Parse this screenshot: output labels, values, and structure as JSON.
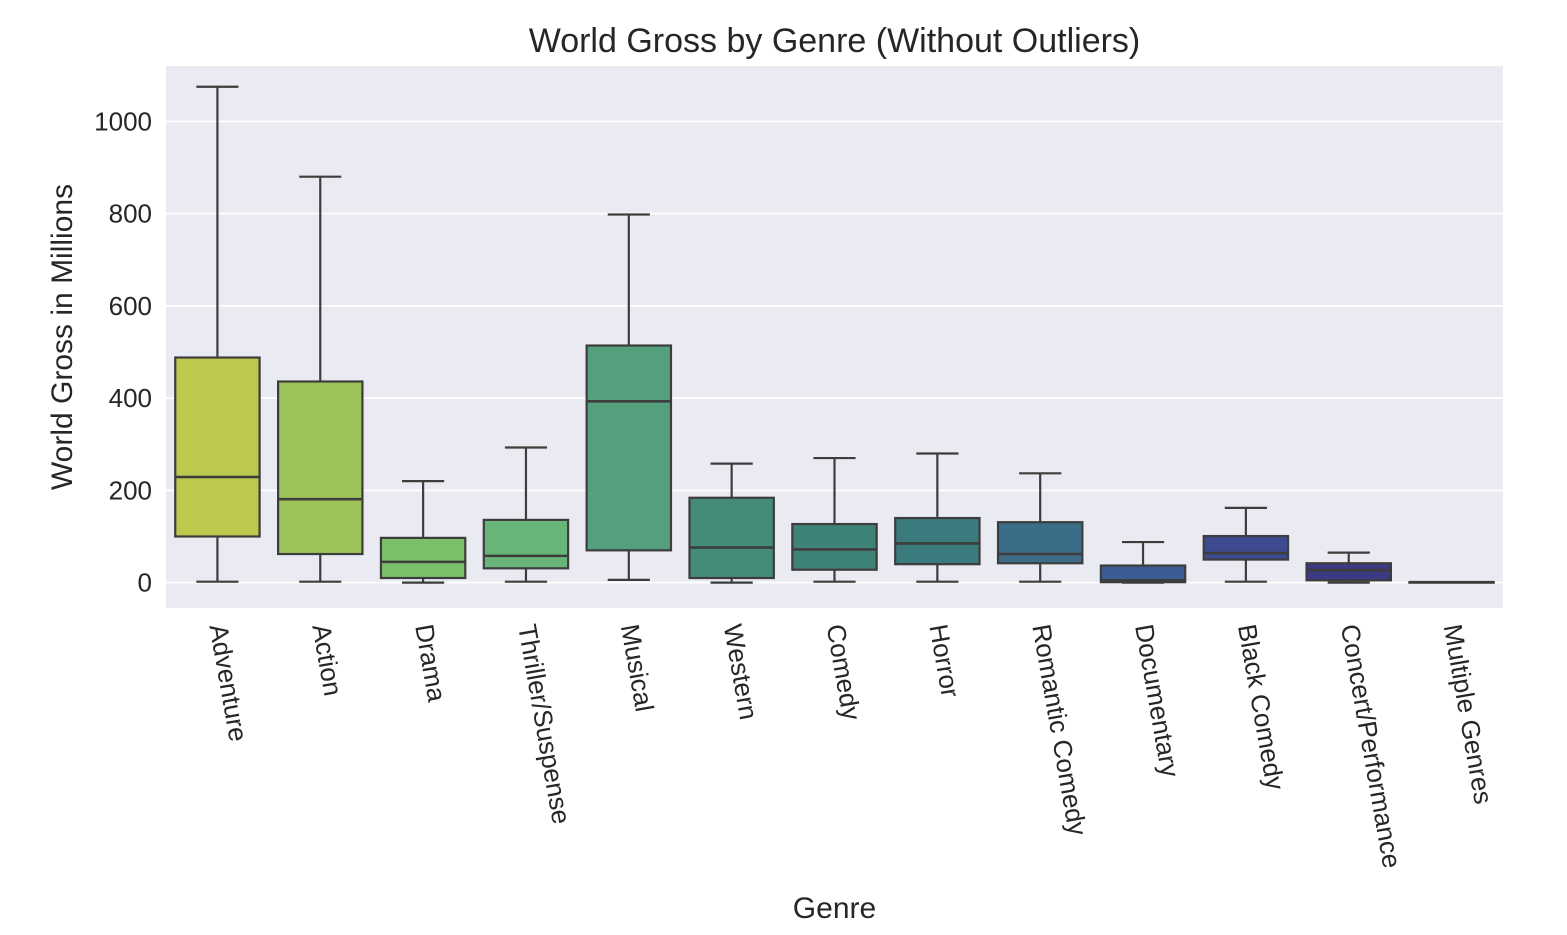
{
  "chart_data": {
    "type": "box",
    "title": "World Gross by Genre (Without Outliers)",
    "xlabel": "Genre",
    "ylabel": "World Gross in Millions",
    "ylim": [
      -55,
      1120
    ],
    "yticks": [
      0,
      200,
      400,
      600,
      800,
      1000
    ],
    "grid": true,
    "categories": [
      "Adventure",
      "Action",
      "Drama",
      "Thriller/Suspense",
      "Musical",
      "Western",
      "Comedy",
      "Horror",
      "Romantic Comedy",
      "Documentary",
      "Black Comedy",
      "Concert/Performance",
      "Multiple Genres"
    ],
    "boxes": [
      {
        "whisker_low": 2,
        "q1": 100,
        "median": 229,
        "q3": 488,
        "whisker_high": 1075
      },
      {
        "whisker_low": 2,
        "q1": 62,
        "median": 181,
        "q3": 436,
        "whisker_high": 880
      },
      {
        "whisker_low": 0,
        "q1": 10,
        "median": 45,
        "q3": 97,
        "whisker_high": 220
      },
      {
        "whisker_low": 2,
        "q1": 31,
        "median": 58,
        "q3": 136,
        "whisker_high": 293
      },
      {
        "whisker_low": 6,
        "q1": 70,
        "median": 393,
        "q3": 514,
        "whisker_high": 798
      },
      {
        "whisker_low": 0,
        "q1": 10,
        "median": 76,
        "q3": 184,
        "whisker_high": 258
      },
      {
        "whisker_low": 2,
        "q1": 28,
        "median": 72,
        "q3": 127,
        "whisker_high": 270
      },
      {
        "whisker_low": 2,
        "q1": 40,
        "median": 85,
        "q3": 140,
        "whisker_high": 280
      },
      {
        "whisker_low": 2,
        "q1": 42,
        "median": 62,
        "q3": 131,
        "whisker_high": 237
      },
      {
        "whisker_low": 0,
        "q1": 1,
        "median": 5,
        "q3": 37,
        "whisker_high": 88
      },
      {
        "whisker_low": 2,
        "q1": 50,
        "median": 64,
        "q3": 101,
        "whisker_high": 162
      },
      {
        "whisker_low": 0,
        "q1": 5,
        "median": 27,
        "q3": 42,
        "whisker_high": 65
      },
      {
        "whisker_low": 1,
        "q1": 1,
        "median": 1,
        "q3": 1,
        "whisker_high": 1
      }
    ],
    "colors": [
      "#bcc84e",
      "#9dc45a",
      "#7bbf69",
      "#68b57a",
      "#54a07d",
      "#458b7a",
      "#3f8278",
      "#3b7a7d",
      "#3c6d88",
      "#3b5d93",
      "#3d4a91",
      "#3b3a83",
      "#2f2a5e"
    ]
  }
}
